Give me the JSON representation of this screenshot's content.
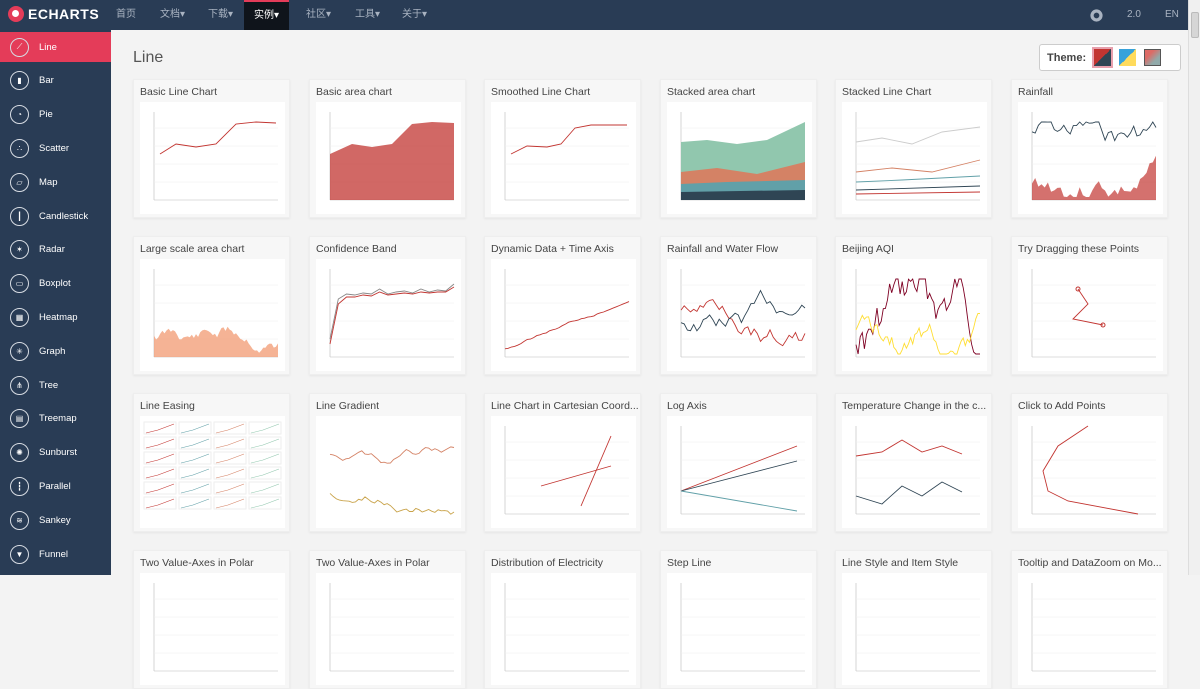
{
  "nav": {
    "logo": "ECHARTS",
    "items": [
      "首页",
      "文档▾",
      "下载▾",
      "实例▾",
      "社区▾",
      "工具▾",
      "关于▾"
    ],
    "active": 3,
    "version": "2.0",
    "lang": "EN",
    "github_icon": "github-icon"
  },
  "sidebar": {
    "active": 0,
    "items": [
      {
        "label": "Line",
        "icon": "line-chart-icon"
      },
      {
        "label": "Bar",
        "icon": "bar-chart-icon"
      },
      {
        "label": "Pie",
        "icon": "pie-chart-icon"
      },
      {
        "label": "Scatter",
        "icon": "scatter-icon"
      },
      {
        "label": "Map",
        "icon": "map-icon"
      },
      {
        "label": "Candlestick",
        "icon": "candlestick-icon"
      },
      {
        "label": "Radar",
        "icon": "radar-icon"
      },
      {
        "label": "Boxplot",
        "icon": "boxplot-icon"
      },
      {
        "label": "Heatmap",
        "icon": "heatmap-icon"
      },
      {
        "label": "Graph",
        "icon": "graph-icon"
      },
      {
        "label": "Tree",
        "icon": "tree-icon"
      },
      {
        "label": "Treemap",
        "icon": "treemap-icon"
      },
      {
        "label": "Sunburst",
        "icon": "sunburst-icon"
      },
      {
        "label": "Parallel",
        "icon": "parallel-icon"
      },
      {
        "label": "Sankey",
        "icon": "sankey-icon"
      },
      {
        "label": "Funnel",
        "icon": "funnel-icon"
      }
    ]
  },
  "main": {
    "title": "Line",
    "theme_label": "Theme:",
    "colors": {
      "accent": "#e43c59",
      "nav": "#293c55",
      "series": "#c23531"
    },
    "cards": [
      "Basic Line Chart",
      "Basic area chart",
      "Smoothed Line Chart",
      "Stacked area chart",
      "Stacked Line Chart",
      "Rainfall",
      "Large scale area chart",
      "Confidence Band",
      "Dynamic Data + Time Axis",
      "Rainfall and Water Flow",
      "Beijing AQI",
      "Try Dragging these Points",
      "Line Easing",
      "Line Gradient",
      "Line Chart in Cartesian Coord...",
      "Log Axis",
      "Temperature Change in the c...",
      "Click to Add Points",
      "Two Value-Axes in Polar",
      "Two Value-Axes in Polar",
      "Distribution of Electricity",
      "Step Line",
      "Line Style and Item Style",
      "Tooltip and DataZoom on Mo..."
    ]
  }
}
